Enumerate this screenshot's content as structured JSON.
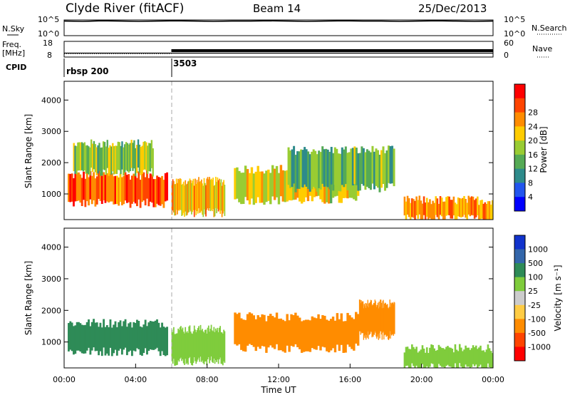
{
  "header": {
    "station": "Clyde River (fitACF)",
    "beam": "Beam 14",
    "date": "25/Dec/2013"
  },
  "colors": {
    "power": [
      "#0000ff",
      "#2255ee",
      "#2e8b8b",
      "#55aa55",
      "#99cc33",
      "#ffcc00",
      "#ff8c00",
      "#ff4400",
      "#ff0000"
    ],
    "velocity": [
      "#ff0000",
      "#ff4400",
      "#ff8c00",
      "#ffcc44",
      "#cccccc",
      "#7fcc3c",
      "#2e8b57",
      "#3366aa",
      "#1133cc"
    ]
  },
  "chart_data": [
    {
      "type": "line",
      "panel": "noise",
      "left_label": "N.Sky",
      "left_ticks": [
        "10^5",
        "10^0"
      ],
      "right_label": "N.Search",
      "right_ticks": [
        "10^5",
        "10^0"
      ],
      "x_range_hours": [
        0,
        24
      ],
      "series": [
        {
          "values": [
            5.2,
            5.1,
            5.3,
            5.2,
            5.1,
            5.2,
            5.3,
            5.2,
            5.1,
            5.2,
            5.2,
            5.3,
            5.2,
            5.1,
            5.2,
            5.3,
            5.2,
            5.2,
            5.1,
            5.2,
            5.3,
            5.2,
            5.1,
            5.2
          ]
        }
      ]
    },
    {
      "type": "line",
      "panel": "frequency-nave",
      "left_label": "Freq.",
      "left_unit": "[MHz]",
      "left_ticks": [
        "18",
        "8"
      ],
      "right_label": "Nave",
      "right_ticks": [
        "60",
        "0"
      ],
      "x": [
        0,
        6,
        6,
        24
      ],
      "series": [
        {
          "values": [
            10.5,
            10.5,
            10.5,
            10.5
          ]
        },
        {
          "values": [
            13,
            13,
            30,
            30
          ]
        }
      ]
    },
    {
      "type": "table",
      "panel": "cpid",
      "label": "CPID",
      "segments": [
        {
          "start_hour": 0,
          "name": "rbsp 200"
        },
        {
          "start_hour": 6,
          "name": "3503"
        }
      ]
    },
    {
      "type": "heatmap",
      "panel": "power",
      "ylabel": "Slant Range [km]",
      "xlim": [
        0,
        24
      ],
      "ylim": [
        180,
        4600
      ],
      "yticks": [
        1000,
        2000,
        3000,
        4000
      ],
      "colorbar": {
        "label": "Power [dB]",
        "ticks": [
          "4",
          "8",
          "12",
          "16",
          "20",
          "24",
          "28"
        ],
        "range": [
          0,
          30
        ]
      },
      "dashed_marker_hour": 6,
      "echo_regions": [
        {
          "t": [
            0.2,
            5.8
          ],
          "r": [
            700,
            1600
          ],
          "value": 25
        },
        {
          "t": [
            0.5,
            5.0
          ],
          "r": [
            1700,
            2600
          ],
          "value": 14
        },
        {
          "t": [
            6.0,
            9.0
          ],
          "r": [
            400,
            1400
          ],
          "value": 20
        },
        {
          "t": [
            9.5,
            16.5
          ],
          "r": [
            800,
            1800
          ],
          "value": 18
        },
        {
          "t": [
            12.5,
            18.5
          ],
          "r": [
            1200,
            2400
          ],
          "value": 12
        },
        {
          "t": [
            19.0,
            24.0
          ],
          "r": [
            200,
            800
          ],
          "value": 22
        }
      ]
    },
    {
      "type": "heatmap",
      "panel": "velocity",
      "xlabel": "Time UT",
      "ylabel": "Slant Range [km]",
      "xlim": [
        0,
        24
      ],
      "ylim": [
        180,
        4600
      ],
      "xtick_labels": [
        "00:00",
        "04:00",
        "08:00",
        "12:00",
        "16:00",
        "20:00",
        "00:00"
      ],
      "yticks": [
        1000,
        2000,
        3000,
        4000
      ],
      "colorbar": {
        "label": "Velocity [m s⁻¹]",
        "ticks": [
          "1000",
          "500",
          "100",
          "25",
          "-25",
          "-100",
          "-500",
          "-1000"
        ]
      },
      "dashed_marker_hour": 6,
      "echo_regions": [
        {
          "t": [
            0.2,
            5.8
          ],
          "r": [
            700,
            1600
          ],
          "value": 150
        },
        {
          "t": [
            6.0,
            9.0
          ],
          "r": [
            400,
            1400
          ],
          "value": 50
        },
        {
          "t": [
            9.5,
            16.5
          ],
          "r": [
            800,
            1800
          ],
          "value": -300
        },
        {
          "t": [
            16.5,
            18.5
          ],
          "r": [
            1200,
            2200
          ],
          "value": -300
        },
        {
          "t": [
            19.0,
            24.0
          ],
          "r": [
            200,
            800
          ],
          "value": 100
        }
      ]
    }
  ]
}
